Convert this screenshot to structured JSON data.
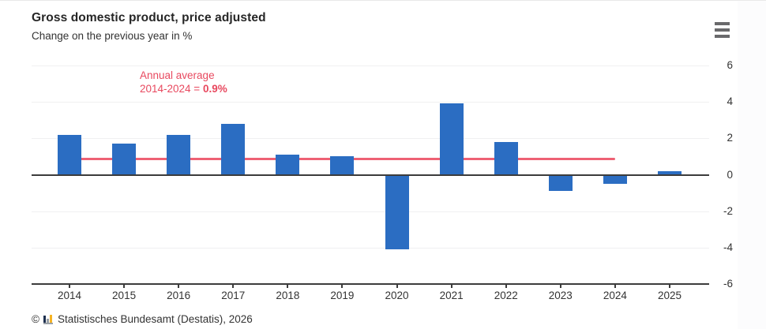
{
  "header": {
    "title": "Gross domestic product, price adjusted",
    "subtitle": "Change on the previous year in %"
  },
  "annotation": {
    "line1": "Annual average",
    "line2_prefix": "2014-2024 = ",
    "line2_value": "0.9%",
    "color": "#e8495f"
  },
  "chart_data": {
    "type": "bar",
    "title": "Gross domestic product, price adjusted",
    "ylabel": "Change on the previous year in %",
    "categories": [
      "2014",
      "2015",
      "2016",
      "2017",
      "2018",
      "2019",
      "2020",
      "2021",
      "2022",
      "2023",
      "2024",
      "2025"
    ],
    "values": [
      2.2,
      1.7,
      2.2,
      2.8,
      1.1,
      1.0,
      -4.1,
      3.9,
      1.8,
      -0.9,
      -0.5,
      0.2
    ],
    "average_line": {
      "value": 0.9,
      "from_category": "2014",
      "to_category": "2024",
      "color": "#ee6174"
    },
    "ylim": [
      -6,
      6
    ],
    "yticks": [
      6,
      4,
      2,
      0,
      -2,
      -4,
      -6
    ],
    "grid": true,
    "legend": "none",
    "bar_color": "#2b6dc2",
    "axis_color": "#3c3c3c",
    "gridline_color": "#f0f0f1"
  },
  "footer": {
    "copyright": "©",
    "source": "Statistisches Bundesamt (Destatis), 2026"
  }
}
